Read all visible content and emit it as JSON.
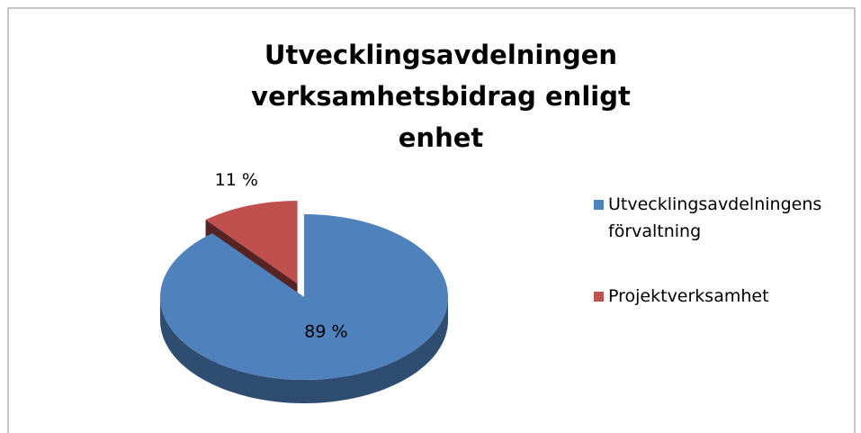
{
  "chart_data": {
    "type": "pie",
    "title": "Utvecklingsavdelningen verksamhetsbidrag enligt enhet",
    "categories": [
      "Utvecklingsavdelningens förvaltning",
      "Projektverksamhet"
    ],
    "values": [
      89,
      11
    ],
    "value_labels": [
      "89 %",
      "11 %"
    ],
    "colors": [
      "#4f81bd",
      "#c0504d"
    ],
    "legend": "right"
  }
}
